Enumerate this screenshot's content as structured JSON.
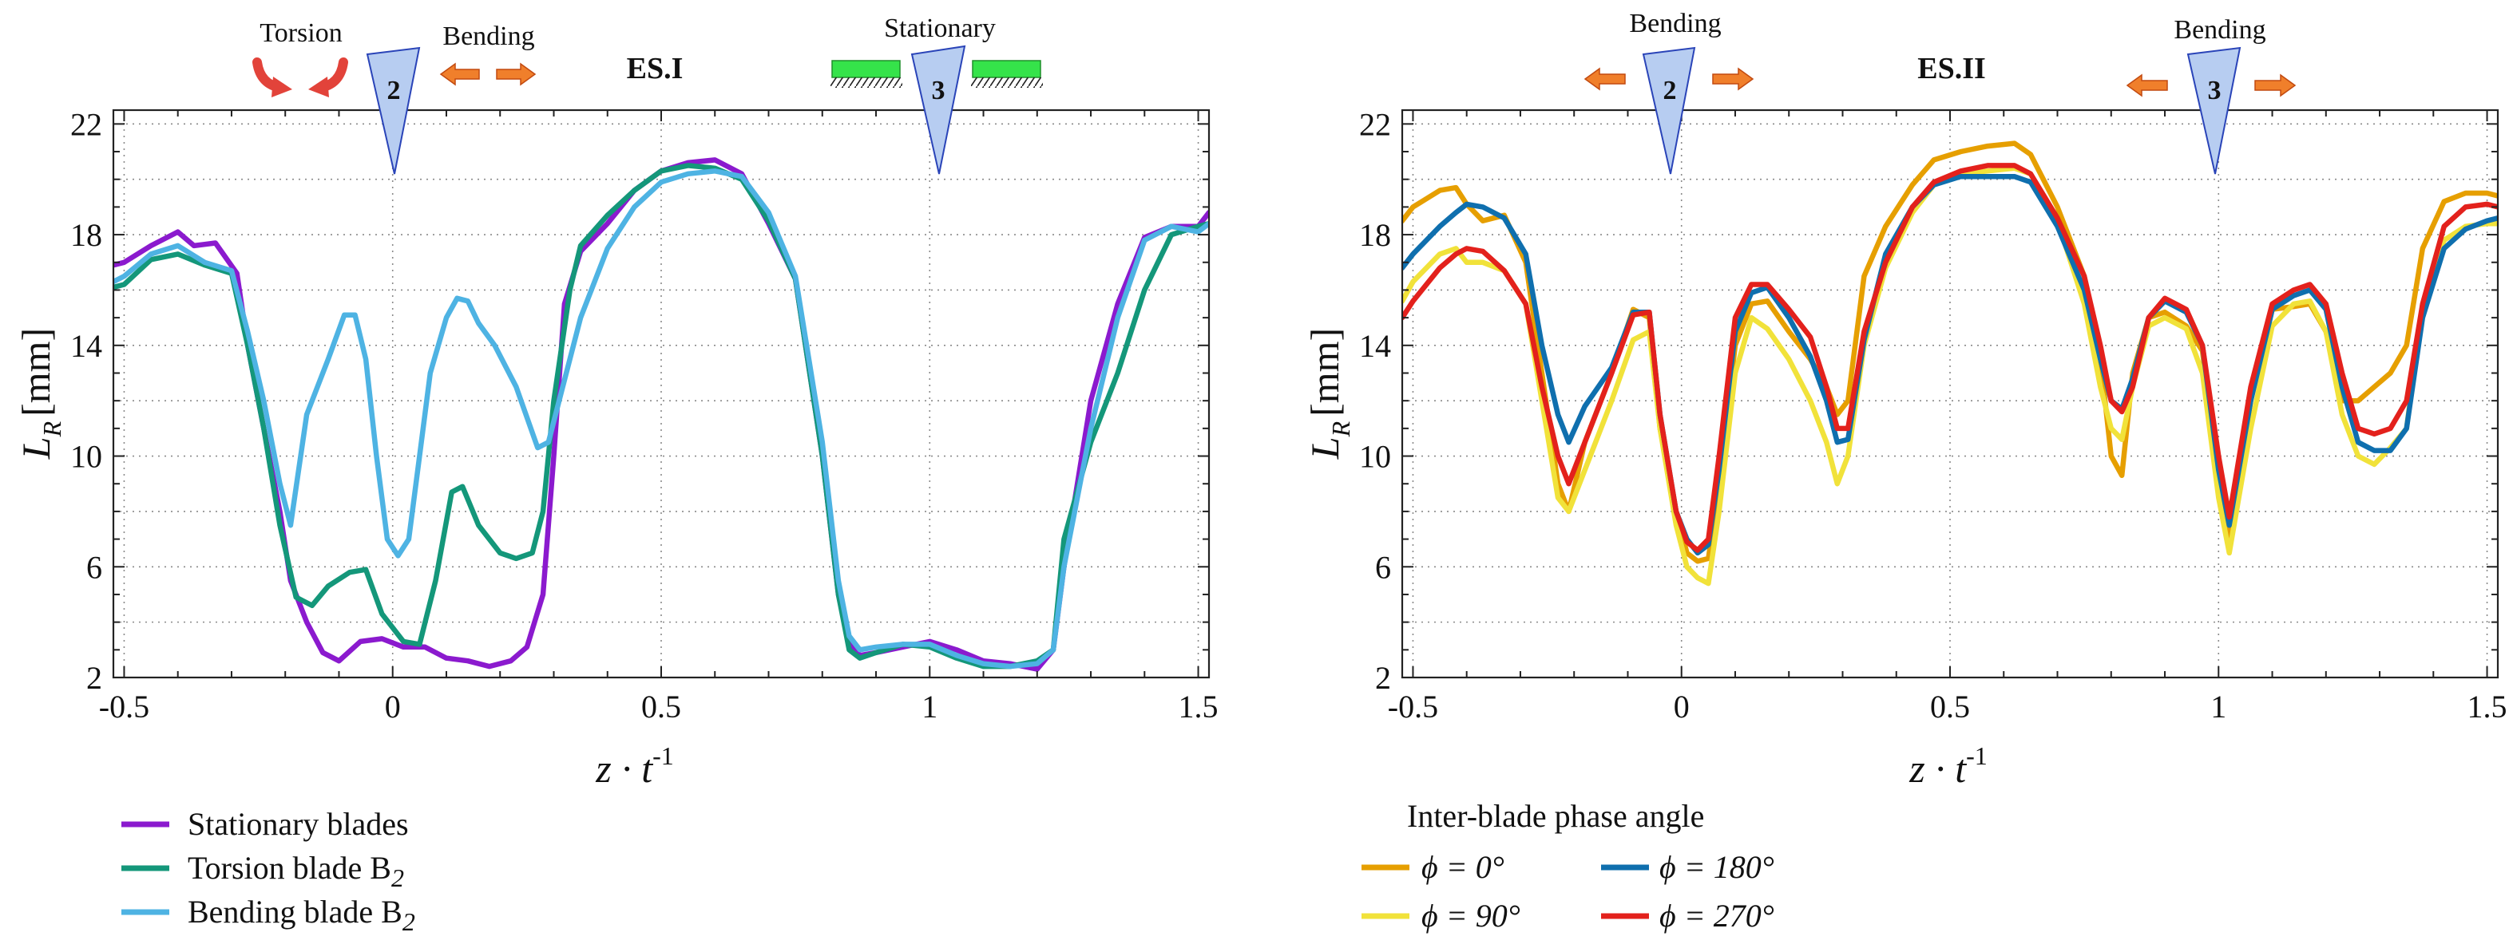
{
  "chart_data": [
    {
      "type": "line",
      "panel": "left",
      "title": "ES.I",
      "xlabel": "z · t",
      "xlabel_sup": "-1",
      "ylabel": "L",
      "ylabel_sub": "R",
      "ylabel_unit": "[mm]",
      "xlim": [
        -0.52,
        1.52
      ],
      "ylim": [
        2,
        22.5
      ],
      "xticks": [
        -0.5,
        0,
        0.5,
        1,
        1.5
      ],
      "xtick_labels": [
        "-0.5",
        "0",
        "0.5",
        "1",
        "1.5"
      ],
      "yticks": [
        2,
        6,
        10,
        14,
        18,
        22
      ],
      "ytick_labels": [
        "2",
        "6",
        "10",
        "14",
        "18",
        "22"
      ],
      "grid": "dotted",
      "annotations": {
        "torsion": "Torsion",
        "bending": "Bending",
        "stationary": "Stationary",
        "blade2": "2",
        "blade3": "3"
      },
      "legend": {
        "items": [
          {
            "label": "Stationary blades",
            "color": "#8B1ACE"
          },
          {
            "label": "Torsion blade B",
            "sub": "2",
            "color": "#14977A"
          },
          {
            "label": "Bending blade B",
            "sub": "2",
            "color": "#4EB3E3"
          }
        ]
      },
      "series": [
        {
          "name": "Stationary blades",
          "color": "#8B1ACE",
          "x": [
            -0.52,
            -0.5,
            -0.45,
            -0.4,
            -0.37,
            -0.33,
            -0.29,
            -0.27,
            -0.24,
            -0.21,
            -0.19,
            -0.16,
            -0.13,
            -0.1,
            -0.06,
            -0.02,
            0.02,
            0.06,
            0.1,
            0.14,
            0.18,
            0.22,
            0.25,
            0.28,
            0.3,
            0.32,
            0.35,
            0.4,
            0.45,
            0.5,
            0.55,
            0.6,
            0.65,
            0.7,
            0.75,
            0.8,
            0.83,
            0.85,
            0.87,
            0.9,
            0.95,
            1,
            1.05,
            1.1,
            1.15,
            1.2,
            1.23,
            1.25,
            1.3,
            1.35,
            1.4,
            1.45,
            1.5,
            1.52
          ],
          "y": [
            16.9,
            17,
            17.6,
            18.1,
            17.6,
            17.7,
            16.6,
            14,
            11,
            8,
            5.5,
            4,
            2.9,
            2.6,
            3.3,
            3.4,
            3.1,
            3.1,
            2.7,
            2.6,
            2.4,
            2.6,
            3.1,
            5,
            10,
            15.5,
            17.4,
            18.4,
            19.6,
            20.3,
            20.6,
            20.7,
            20.2,
            18.4,
            16.4,
            10,
            5,
            3.2,
            2.8,
            2.9,
            3.1,
            3.3,
            3,
            2.6,
            2.5,
            2.3,
            3,
            6,
            12,
            15.5,
            17.9,
            18.3,
            18.3,
            18.8
          ]
        },
        {
          "name": "Torsion blade B2",
          "color": "#14977A",
          "x": [
            -0.52,
            -0.5,
            -0.45,
            -0.4,
            -0.35,
            -0.3,
            -0.27,
            -0.24,
            -0.21,
            -0.18,
            -0.15,
            -0.12,
            -0.08,
            -0.05,
            -0.02,
            0.02,
            0.05,
            0.08,
            0.11,
            0.13,
            0.16,
            0.2,
            0.23,
            0.26,
            0.28,
            0.3,
            0.33,
            0.35,
            0.4,
            0.45,
            0.5,
            0.55,
            0.6,
            0.65,
            0.7,
            0.75,
            0.8,
            0.83,
            0.85,
            0.87,
            0.9,
            0.95,
            1,
            1.05,
            1.1,
            1.15,
            1.2,
            1.23,
            1.25,
            1.3,
            1.35,
            1.4,
            1.45,
            1.5,
            1.52
          ],
          "y": [
            16.1,
            16.2,
            17.1,
            17.3,
            16.9,
            16.6,
            14,
            11,
            7.5,
            4.9,
            4.6,
            5.3,
            5.8,
            5.9,
            4.3,
            3.3,
            3.2,
            5.5,
            8.7,
            8.9,
            7.5,
            6.5,
            6.3,
            6.5,
            8,
            12,
            16,
            17.6,
            18.7,
            19.6,
            20.3,
            20.5,
            20.4,
            20,
            18.5,
            16.4,
            10,
            5,
            3,
            2.7,
            2.9,
            3.2,
            3.1,
            2.7,
            2.4,
            2.4,
            2.6,
            3,
            7,
            10.5,
            13,
            16,
            18,
            18.3,
            18.4
          ]
        },
        {
          "name": "Bending blade B2",
          "color": "#4EB3E3",
          "x": [
            -0.52,
            -0.5,
            -0.45,
            -0.4,
            -0.35,
            -0.3,
            -0.27,
            -0.24,
            -0.21,
            -0.19,
            -0.16,
            -0.12,
            -0.09,
            -0.07,
            -0.05,
            -0.03,
            -0.01,
            0.01,
            0.03,
            0.05,
            0.07,
            0.1,
            0.12,
            0.14,
            0.16,
            0.19,
            0.23,
            0.27,
            0.29,
            0.31,
            0.35,
            0.4,
            0.45,
            0.5,
            0.55,
            0.6,
            0.65,
            0.7,
            0.75,
            0.8,
            0.83,
            0.85,
            0.87,
            0.9,
            0.95,
            1,
            1.05,
            1.1,
            1.15,
            1.2,
            1.23,
            1.25,
            1.3,
            1.35,
            1.4,
            1.45,
            1.5,
            1.52
          ],
          "y": [
            16.3,
            16.5,
            17.3,
            17.6,
            17,
            16.7,
            14.5,
            12,
            9,
            7.5,
            11.5,
            13.5,
            15.1,
            15.1,
            13.5,
            10,
            7,
            6.4,
            7,
            10,
            13,
            15,
            15.7,
            15.6,
            14.8,
            14,
            12.5,
            10.3,
            10.5,
            12,
            15,
            17.5,
            19,
            19.9,
            20.2,
            20.3,
            20.1,
            18.8,
            16.5,
            10.5,
            5.5,
            3.5,
            3,
            3.1,
            3.2,
            3.2,
            2.8,
            2.5,
            2.4,
            2.5,
            3,
            6,
            11,
            15,
            17.8,
            18.3,
            18.1,
            18.4
          ]
        }
      ]
    },
    {
      "type": "line",
      "panel": "right",
      "title": "ES.II",
      "xlabel": "z · t",
      "xlabel_sup": "-1",
      "ylabel": "L",
      "ylabel_sub": "R",
      "ylabel_unit": "[mm]",
      "xlim": [
        -0.52,
        1.52
      ],
      "ylim": [
        2,
        22.5
      ],
      "xticks": [
        -0.5,
        0,
        0.5,
        1,
        1.5
      ],
      "xtick_labels": [
        "-0.5",
        "0",
        "0.5",
        "1",
        "1.5"
      ],
      "yticks": [
        2,
        6,
        10,
        14,
        18,
        22
      ],
      "ytick_labels": [
        "2",
        "6",
        "10",
        "14",
        "18",
        "22"
      ],
      "grid": "dotted",
      "annotations": {
        "bending_left": "Bending",
        "bending_right": "Bending",
        "blade2": "2",
        "blade3": "3"
      },
      "legend": {
        "title": "Inter-blade phase angle",
        "items": [
          {
            "label": "ϕ = 0°",
            "color": "#E69F00"
          },
          {
            "label": "ϕ = 180°",
            "color": "#0F6FAE"
          },
          {
            "label": "ϕ =  90°",
            "color": "#F1E23A"
          },
          {
            "label": "ϕ = 270°",
            "color": "#E3211C"
          }
        ]
      },
      "series": [
        {
          "name": "ϕ = 0°",
          "color": "#E69F00",
          "x": [
            -0.52,
            -0.5,
            -0.45,
            -0.42,
            -0.4,
            -0.37,
            -0.33,
            -0.29,
            -0.26,
            -0.23,
            -0.21,
            -0.18,
            -0.13,
            -0.09,
            -0.06,
            -0.04,
            -0.01,
            0.01,
            0.03,
            0.05,
            0.07,
            0.1,
            0.13,
            0.16,
            0.2,
            0.24,
            0.27,
            0.29,
            0.31,
            0.34,
            0.38,
            0.43,
            0.47,
            0.52,
            0.57,
            0.62,
            0.65,
            0.7,
            0.75,
            0.78,
            0.8,
            0.82,
            0.84,
            0.87,
            0.9,
            0.94,
            0.97,
            1,
            1.02,
            1.06,
            1.1,
            1.14,
            1.17,
            1.2,
            1.23,
            1.26,
            1.29,
            1.32,
            1.35,
            1.38,
            1.42,
            1.46,
            1.5,
            1.52
          ],
          "y": [
            18.5,
            19,
            19.6,
            19.7,
            19.1,
            18.5,
            18.7,
            17,
            13,
            9,
            8,
            10.5,
            13,
            15.3,
            15,
            11,
            8,
            6.5,
            6.2,
            6.3,
            9,
            14,
            15.5,
            15.6,
            14.5,
            13.5,
            12.5,
            11.5,
            12,
            16.5,
            18.3,
            19.8,
            20.7,
            21,
            21.2,
            21.3,
            20.9,
            19,
            16.5,
            13.5,
            10,
            9.3,
            13,
            15,
            15.2,
            14.7,
            13.8,
            9,
            7,
            12,
            15.3,
            15.4,
            15.5,
            14.5,
            12,
            12,
            12.5,
            13,
            14,
            17.5,
            19.2,
            19.5,
            19.5,
            19.4
          ]
        },
        {
          "name": "ϕ = 90°",
          "color": "#F1E23A",
          "x": [
            -0.52,
            -0.5,
            -0.45,
            -0.42,
            -0.4,
            -0.37,
            -0.33,
            -0.29,
            -0.26,
            -0.23,
            -0.21,
            -0.18,
            -0.13,
            -0.09,
            -0.06,
            -0.04,
            -0.01,
            0.01,
            0.03,
            0.05,
            0.07,
            0.1,
            0.13,
            0.16,
            0.2,
            0.24,
            0.27,
            0.29,
            0.31,
            0.34,
            0.38,
            0.43,
            0.47,
            0.52,
            0.57,
            0.62,
            0.65,
            0.7,
            0.75,
            0.78,
            0.8,
            0.82,
            0.84,
            0.87,
            0.9,
            0.94,
            0.97,
            1,
            1.02,
            1.06,
            1.1,
            1.14,
            1.17,
            1.2,
            1.23,
            1.26,
            1.29,
            1.32,
            1.35,
            1.38,
            1.42,
            1.46,
            1.5,
            1.52
          ],
          "y": [
            15.6,
            16.3,
            17.3,
            17.5,
            17,
            17,
            16.7,
            15.5,
            12,
            8.5,
            8,
            9.5,
            12,
            14.2,
            14.5,
            11,
            7.5,
            6,
            5.6,
            5.4,
            8,
            13,
            15,
            14.6,
            13.5,
            12,
            10.5,
            9,
            10,
            14,
            16.8,
            18.8,
            19.8,
            20.2,
            20.3,
            20.4,
            20.2,
            18.5,
            15.5,
            12.5,
            11,
            10.6,
            12.5,
            14.7,
            15,
            14.6,
            13,
            8.5,
            6.5,
            11,
            14.7,
            15.5,
            15.6,
            14.5,
            11.5,
            10,
            9.7,
            10.3,
            11,
            15.5,
            17.8,
            18.3,
            18.4,
            18.4
          ]
        },
        {
          "name": "ϕ = 180°",
          "color": "#0F6FAE",
          "x": [
            -0.52,
            -0.5,
            -0.45,
            -0.42,
            -0.4,
            -0.37,
            -0.33,
            -0.29,
            -0.26,
            -0.23,
            -0.21,
            -0.18,
            -0.13,
            -0.09,
            -0.06,
            -0.04,
            -0.01,
            0.01,
            0.03,
            0.05,
            0.07,
            0.1,
            0.13,
            0.16,
            0.2,
            0.24,
            0.27,
            0.29,
            0.31,
            0.34,
            0.38,
            0.43,
            0.47,
            0.52,
            0.57,
            0.62,
            0.65,
            0.7,
            0.75,
            0.78,
            0.8,
            0.82,
            0.84,
            0.87,
            0.9,
            0.94,
            0.97,
            1,
            1.02,
            1.06,
            1.1,
            1.14,
            1.17,
            1.2,
            1.23,
            1.26,
            1.29,
            1.32,
            1.35,
            1.38,
            1.42,
            1.46,
            1.5,
            1.52
          ],
          "y": [
            16.8,
            17.3,
            18.3,
            18.8,
            19.1,
            19,
            18.6,
            17.3,
            14,
            11.5,
            10.5,
            11.8,
            13.2,
            15.2,
            15.2,
            11.5,
            8,
            7,
            6.5,
            6.8,
            9.5,
            14.5,
            15.9,
            16.1,
            15,
            13.6,
            12,
            10.5,
            10.6,
            14.2,
            17.3,
            19,
            19.8,
            20.1,
            20.1,
            20.1,
            19.9,
            18.3,
            16,
            13.5,
            12,
            11.7,
            12.8,
            15,
            15.6,
            15.2,
            14,
            9.5,
            7.5,
            12,
            15.3,
            15.8,
            16,
            15.3,
            12.5,
            10.5,
            10.2,
            10.2,
            11,
            15,
            17.5,
            18.2,
            18.5,
            18.6
          ]
        },
        {
          "name": "ϕ = 270°",
          "color": "#E3211C",
          "x": [
            -0.52,
            -0.5,
            -0.45,
            -0.42,
            -0.4,
            -0.37,
            -0.33,
            -0.29,
            -0.26,
            -0.23,
            -0.21,
            -0.18,
            -0.13,
            -0.09,
            -0.06,
            -0.04,
            -0.01,
            0.01,
            0.03,
            0.05,
            0.07,
            0.1,
            0.13,
            0.16,
            0.2,
            0.24,
            0.27,
            0.29,
            0.31,
            0.34,
            0.38,
            0.43,
            0.47,
            0.52,
            0.57,
            0.62,
            0.65,
            0.7,
            0.75,
            0.78,
            0.8,
            0.82,
            0.84,
            0.87,
            0.9,
            0.94,
            0.97,
            1,
            1.02,
            1.06,
            1.1,
            1.14,
            1.17,
            1.2,
            1.23,
            1.26,
            1.29,
            1.32,
            1.35,
            1.38,
            1.42,
            1.46,
            1.5,
            1.52
          ],
          "y": [
            15,
            15.6,
            16.8,
            17.3,
            17.5,
            17.4,
            16.7,
            15.5,
            12.5,
            10,
            9,
            10.5,
            13,
            15.1,
            15.2,
            11.5,
            8,
            6.9,
            6.6,
            7,
            10,
            15,
            16.2,
            16.2,
            15.3,
            14.3,
            12.5,
            11,
            11,
            14.5,
            17,
            19,
            19.9,
            20.3,
            20.5,
            20.5,
            20.2,
            18.6,
            16.5,
            14,
            12,
            11.6,
            12.5,
            15,
            15.7,
            15.3,
            14,
            10,
            7.8,
            12.5,
            15.5,
            16,
            16.2,
            15.5,
            13,
            11,
            10.8,
            11,
            12,
            15.5,
            18.3,
            19,
            19.1,
            19
          ]
        }
      ]
    }
  ]
}
